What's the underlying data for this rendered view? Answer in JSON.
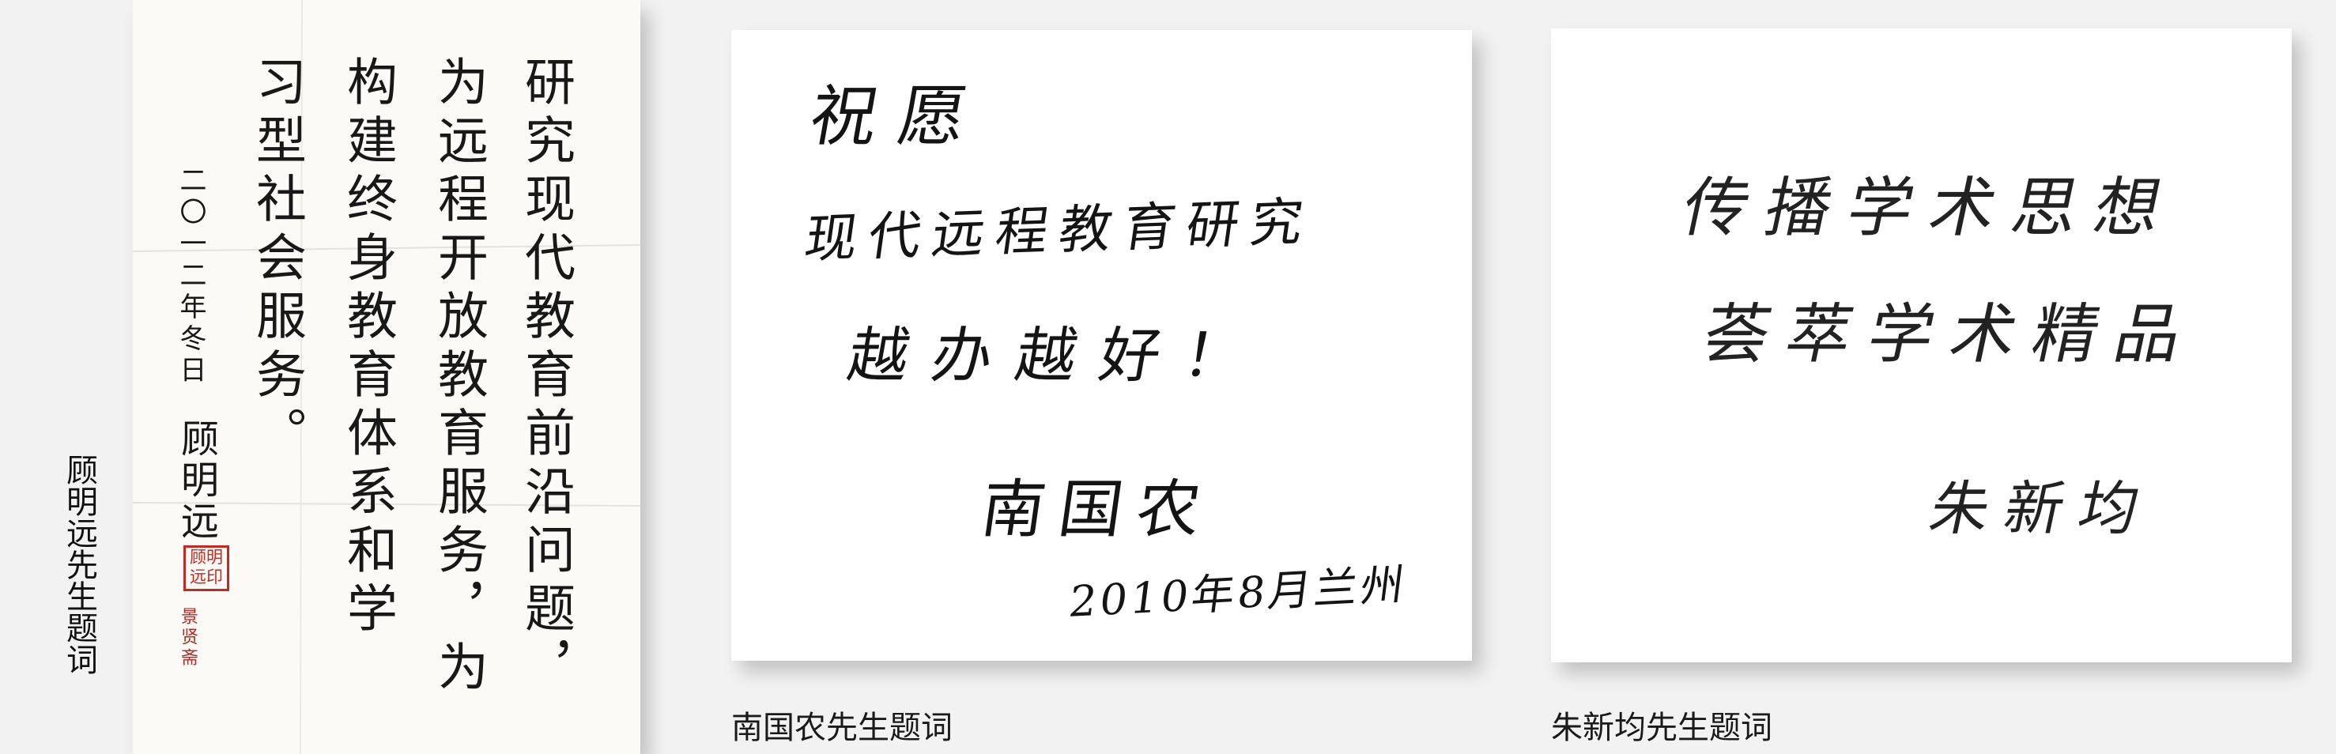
{
  "left": {
    "caption": "顾明远先生题词",
    "columns": [
      "研究现代教育前沿问题，",
      "为远程开放教育服务，为",
      "构建终身教育体系和学",
      "习型社会服务。"
    ],
    "date": "二〇一二年冬日",
    "signature": "顾明远",
    "seal": "顾明远印",
    "small_stamp": "景贤斋"
  },
  "middle": {
    "caption": "南国农先生题词",
    "lines": [
      "祝愿",
      "现代远程教育研究",
      "越办越好！"
    ],
    "signature": "南国农",
    "date": "2010年8月兰州"
  },
  "right": {
    "caption": "朱新均先生题词",
    "lines": [
      "传播学术思想",
      "荟萃学术精品"
    ],
    "signature": "朱新均"
  }
}
